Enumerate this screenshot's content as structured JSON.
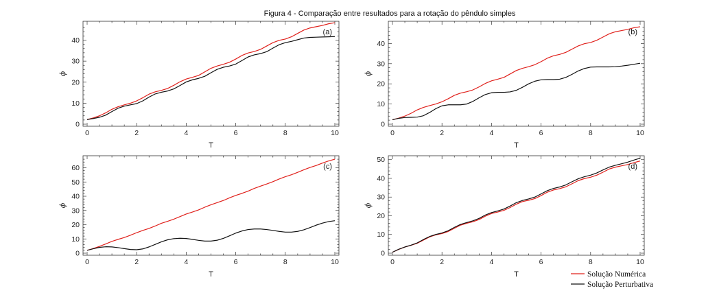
{
  "figure": {
    "title": "Figura 4 - Comparação entre resultados para a rotação do pêndulo simples"
  },
  "legend": {
    "items": [
      {
        "label": "Solução Numérica",
        "color": "#e0201b"
      },
      {
        "label": "Solução Perturbativa",
        "color": "#111111"
      }
    ]
  },
  "chart_data": [
    {
      "type": "line",
      "panel": "(a)",
      "xlabel": "T",
      "ylabel": "ϕ",
      "xlim": [
        0,
        10
      ],
      "ylim": [
        0,
        48
      ],
      "xticks": [
        0,
        2,
        4,
        6,
        8,
        10
      ],
      "yticks": [
        0,
        10,
        20,
        30,
        40
      ],
      "series": [
        {
          "name": "Solução Numérica",
          "color": "#e0201b",
          "x": [
            0,
            0.25,
            0.5,
            0.75,
            1,
            1.25,
            1.5,
            1.75,
            2,
            2.25,
            2.5,
            2.75,
            3,
            3.25,
            3.5,
            3.75,
            4,
            4.25,
            4.5,
            4.75,
            5,
            5.25,
            5.5,
            5.75,
            6,
            6.25,
            6.5,
            6.75,
            7,
            7.25,
            7.5,
            7.75,
            8,
            8.25,
            8.5,
            8.75,
            9,
            9.25,
            9.5,
            9.75,
            10
          ],
          "y": [
            2.2,
            3.0,
            4.0,
            5.4,
            7.1,
            8.3,
            9.2,
            10.0,
            11.1,
            12.6,
            14.3,
            15.4,
            16.1,
            17.0,
            18.5,
            20.2,
            21.5,
            22.3,
            23.2,
            24.9,
            26.6,
            27.7,
            28.5,
            29.5,
            31.0,
            32.7,
            33.9,
            34.6,
            35.6,
            37.2,
            38.8,
            39.9,
            40.5,
            41.6,
            43.2,
            44.8,
            45.8,
            46.4,
            47.0,
            47.8,
            48.3
          ]
        },
        {
          "name": "Solução Perturbativa",
          "color": "#111111",
          "x": [
            0,
            0.25,
            0.5,
            0.75,
            1,
            1.25,
            1.5,
            1.75,
            2,
            2.25,
            2.5,
            2.75,
            3,
            3.25,
            3.5,
            3.75,
            4,
            4.25,
            4.5,
            4.75,
            5,
            5.25,
            5.5,
            5.75,
            6,
            6.25,
            6.5,
            6.75,
            7,
            7.25,
            7.5,
            7.75,
            8,
            8.25,
            8.5,
            8.75,
            9,
            9.25,
            9.5,
            9.75,
            10
          ],
          "y": [
            2.2,
            2.7,
            3.3,
            4.3,
            6.0,
            7.6,
            8.6,
            9.2,
            9.8,
            11.1,
            12.9,
            14.4,
            15.2,
            15.8,
            16.8,
            18.4,
            20.1,
            21.1,
            21.8,
            22.8,
            24.5,
            26.1,
            27.1,
            27.7,
            28.6,
            30.3,
            32.0,
            33.0,
            33.6,
            34.5,
            36.2,
            37.8,
            38.8,
            39.4,
            40.2,
            41.0,
            41.3,
            41.4,
            41.5,
            41.6,
            41.7
          ]
        }
      ]
    },
    {
      "type": "line",
      "panel": "(b)",
      "xlabel": "T",
      "ylabel": "ϕ",
      "xlim": [
        0,
        10
      ],
      "ylim": [
        0,
        50
      ],
      "xticks": [
        0,
        2,
        4,
        6,
        8,
        10
      ],
      "yticks": [
        0,
        10,
        20,
        30,
        40
      ],
      "series": [
        {
          "name": "Solução Numérica",
          "color": "#e0201b",
          "x": [
            0,
            0.25,
            0.5,
            0.75,
            1,
            1.25,
            1.5,
            1.75,
            2,
            2.25,
            2.5,
            2.75,
            3,
            3.25,
            3.5,
            3.75,
            4,
            4.25,
            4.5,
            4.75,
            5,
            5.25,
            5.5,
            5.75,
            6,
            6.25,
            6.5,
            6.75,
            7,
            7.25,
            7.5,
            7.75,
            8,
            8.25,
            8.5,
            8.75,
            9,
            9.25,
            9.5,
            9.75,
            10
          ],
          "y": [
            2.2,
            3.0,
            4.0,
            5.4,
            7.1,
            8.3,
            9.2,
            10.0,
            11.1,
            12.6,
            14.3,
            15.4,
            16.1,
            17.0,
            18.5,
            20.2,
            21.5,
            22.3,
            23.2,
            24.9,
            26.6,
            27.7,
            28.5,
            29.5,
            31.0,
            32.7,
            33.9,
            34.6,
            35.6,
            37.2,
            38.8,
            39.9,
            40.5,
            41.6,
            43.2,
            44.8,
            45.8,
            46.4,
            47.0,
            47.8,
            48.3
          ]
        },
        {
          "name": "Solução Perturbativa",
          "color": "#111111",
          "x": [
            0,
            0.25,
            0.5,
            0.75,
            1,
            1.25,
            1.5,
            1.75,
            2,
            2.25,
            2.5,
            2.75,
            3,
            3.25,
            3.5,
            3.75,
            4,
            4.25,
            4.5,
            4.75,
            5,
            5.25,
            5.5,
            5.75,
            6,
            6.25,
            6.5,
            6.75,
            7,
            7.25,
            7.5,
            7.75,
            8,
            8.25,
            8.5,
            8.75,
            9,
            9.25,
            9.5,
            9.75,
            10
          ],
          "y": [
            2.2,
            2.9,
            3.3,
            3.4,
            3.5,
            4.2,
            5.8,
            7.7,
            9.1,
            9.6,
            9.6,
            9.6,
            10.0,
            11.3,
            13.1,
            14.7,
            15.6,
            15.8,
            15.8,
            16.0,
            16.8,
            18.3,
            20.0,
            21.3,
            22.0,
            22.1,
            22.1,
            22.3,
            23.2,
            24.7,
            26.4,
            27.6,
            28.3,
            28.4,
            28.4,
            28.4,
            28.5,
            28.8,
            29.2,
            29.7,
            30.2
          ]
        }
      ]
    },
    {
      "type": "line",
      "panel": "(c)",
      "xlabel": "T",
      "ylabel": "ϕ",
      "xlim": [
        0,
        10
      ],
      "ylim": [
        0,
        67
      ],
      "xticks": [
        0,
        2,
        4,
        6,
        8,
        10
      ],
      "yticks": [
        0,
        10,
        20,
        30,
        40,
        50,
        60
      ],
      "series": [
        {
          "name": "Solução Numérica",
          "color": "#e0201b",
          "x": [
            0,
            0.25,
            0.5,
            0.75,
            1,
            1.25,
            1.5,
            1.75,
            2,
            2.25,
            2.5,
            2.75,
            3,
            3.25,
            3.5,
            3.75,
            4,
            4.25,
            4.5,
            4.75,
            5,
            5.25,
            5.5,
            5.75,
            6,
            6.25,
            6.5,
            6.75,
            7,
            7.25,
            7.5,
            7.75,
            8,
            8.25,
            8.5,
            8.75,
            9,
            9.25,
            9.5,
            9.75,
            10
          ],
          "y": [
            2.0,
            3.3,
            4.8,
            6.5,
            8.3,
            9.7,
            11.0,
            12.6,
            14.4,
            16.0,
            17.4,
            19.1,
            21.0,
            22.4,
            23.9,
            25.7,
            27.5,
            28.9,
            30.4,
            32.3,
            34.0,
            35.5,
            37.0,
            38.9,
            40.6,
            42.0,
            43.6,
            45.5,
            47.1,
            48.6,
            50.2,
            52.1,
            53.7,
            55.1,
            56.8,
            58.6,
            60.2,
            61.6,
            63.3,
            64.8,
            66.0
          ]
        },
        {
          "name": "Solução Perturbativa",
          "color": "#111111",
          "x": [
            0,
            0.25,
            0.5,
            0.75,
            1,
            1.25,
            1.5,
            1.75,
            2,
            2.25,
            2.5,
            2.75,
            3,
            3.25,
            3.5,
            3.75,
            4,
            4.25,
            4.5,
            4.75,
            5,
            5.25,
            5.5,
            5.75,
            6,
            6.25,
            6.5,
            6.75,
            7,
            7.25,
            7.5,
            7.75,
            8,
            8.25,
            8.5,
            8.75,
            9,
            9.25,
            9.5,
            9.75,
            10
          ],
          "y": [
            2.0,
            3.1,
            4.1,
            4.5,
            4.4,
            3.9,
            3.2,
            2.6,
            2.4,
            3.0,
            4.4,
            6.2,
            8.0,
            9.4,
            10.2,
            10.5,
            10.3,
            9.7,
            9.0,
            8.5,
            8.5,
            9.1,
            10.4,
            12.2,
            14.1,
            15.6,
            16.6,
            17.0,
            17.0,
            16.6,
            16.0,
            15.3,
            14.8,
            14.8,
            15.3,
            16.4,
            18.0,
            19.7,
            21.1,
            22.2,
            22.8
          ]
        }
      ]
    },
    {
      "type": "line",
      "panel": "(d)",
      "xlabel": "T",
      "ylabel": "ϕ",
      "xlim": [
        0,
        10
      ],
      "ylim": [
        0,
        51
      ],
      "xticks": [
        0,
        2,
        4,
        6,
        8,
        10
      ],
      "yticks": [
        0,
        10,
        20,
        30,
        40,
        50
      ],
      "series": [
        {
          "name": "Solução Numérica",
          "color": "#e0201b",
          "x": [
            0,
            0.25,
            0.5,
            0.75,
            1,
            1.25,
            1.5,
            1.75,
            2,
            2.25,
            2.5,
            2.75,
            3,
            3.25,
            3.5,
            3.75,
            4,
            4.25,
            4.5,
            4.75,
            5,
            5.25,
            5.5,
            5.75,
            6,
            6.25,
            6.5,
            6.75,
            7,
            7.25,
            7.5,
            7.75,
            8,
            8.25,
            8.5,
            8.75,
            9,
            9.25,
            9.5,
            9.75,
            10
          ],
          "y": [
            0.5,
            2.0,
            3.3,
            4.2,
            5.3,
            7.0,
            8.7,
            9.8,
            10.5,
            11.6,
            13.3,
            15.0,
            16.0,
            16.8,
            18.0,
            19.8,
            21.2,
            22.0,
            22.9,
            24.4,
            26.2,
            27.6,
            28.3,
            29.2,
            30.8,
            32.6,
            33.8,
            34.5,
            35.5,
            37.1,
            38.8,
            39.9,
            40.6,
            41.7,
            43.3,
            45.0,
            46.0,
            46.7,
            47.4,
            48.4,
            49.3
          ]
        },
        {
          "name": "Solução Perturbativa",
          "color": "#111111",
          "x": [
            0,
            0.25,
            0.5,
            0.75,
            1,
            1.25,
            1.5,
            1.75,
            2,
            2.25,
            2.5,
            2.75,
            3,
            3.25,
            3.5,
            3.75,
            4,
            4.25,
            4.5,
            4.75,
            5,
            5.25,
            5.5,
            5.75,
            6,
            6.25,
            6.5,
            6.75,
            7,
            7.25,
            7.5,
            7.75,
            8,
            8.25,
            8.5,
            8.75,
            9,
            9.25,
            9.5,
            9.75,
            10
          ],
          "y": [
            0.5,
            2.1,
            3.3,
            4.3,
            5.5,
            7.3,
            8.9,
            10.0,
            10.8,
            12.0,
            13.8,
            15.4,
            16.4,
            17.3,
            18.6,
            20.4,
            21.7,
            22.6,
            23.6,
            25.2,
            27.0,
            28.2,
            29.0,
            30.0,
            31.7,
            33.4,
            34.6,
            35.4,
            36.5,
            38.2,
            39.8,
            40.9,
            41.7,
            42.9,
            44.5,
            46.0,
            47.0,
            47.8,
            48.7,
            49.8,
            50.8
          ]
        }
      ]
    }
  ]
}
